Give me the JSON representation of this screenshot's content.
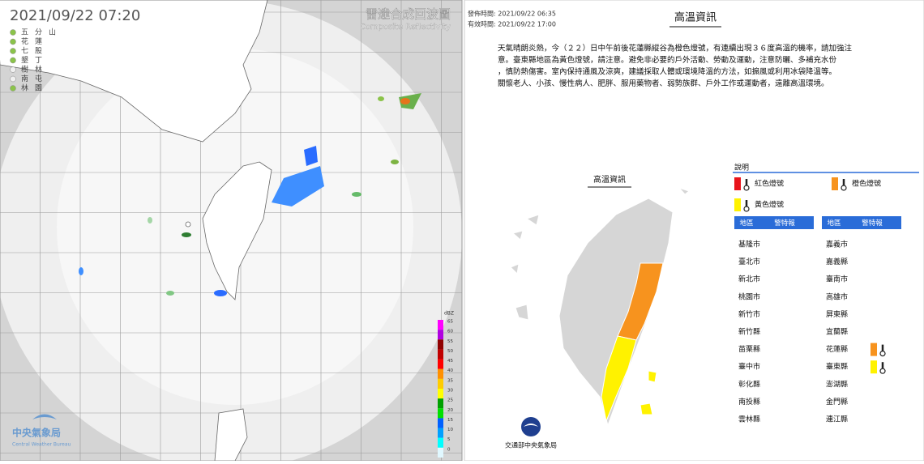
{
  "radar": {
    "timestamp": "2021/09/22  07:20",
    "title": "雷達合成回波圖",
    "subtitle": "Composite Reflectivity",
    "stations": [
      "五分山",
      "花蓮",
      "七股",
      "墾丁",
      "樹林",
      "南屯",
      "林園"
    ],
    "scale_unit": "dBZ",
    "scale": [
      {
        "value": 65,
        "color": "#ff00ff"
      },
      {
        "value": 60,
        "color": "#b000e0"
      },
      {
        "value": 55,
        "color": "#900000"
      },
      {
        "value": 50,
        "color": "#c00000"
      },
      {
        "value": 45,
        "color": "#ff0000"
      },
      {
        "value": 40,
        "color": "#ff9000"
      },
      {
        "value": 35,
        "color": "#ffcc00"
      },
      {
        "value": 30,
        "color": "#ffff00"
      },
      {
        "value": 25,
        "color": "#00a000"
      },
      {
        "value": 20,
        "color": "#00e000"
      },
      {
        "value": 15,
        "color": "#0060ff"
      },
      {
        "value": 10,
        "color": "#00a0ff"
      },
      {
        "value": 5,
        "color": "#00ffff"
      },
      {
        "value": 0,
        "color": "#e0f8ff"
      }
    ],
    "logo": "中央氣象局",
    "logo_en": "Central Weather Bureau"
  },
  "advisory": {
    "issued": "發佈時間: 2021/09/22 06:35",
    "valid": "有效時間: 2021/09/22 17:00",
    "title": "高溫資訊",
    "body": [
      "天氣晴朗炎熱，今（２２）日中午前後花蓮縣縱谷為橙色燈號，有連續出現３６度高溫的機率，請加強注",
      "意。臺東縣地區為黃色燈號，請注意。避免非必要的戶外活動、勞動及運動，注意防曬、多補充水份",
      "，慎防熱傷害。室內保持通風及涼爽，建議採取人體或環境降溫的方法，如搧風或利用冰袋降溫等。",
      "關懷老人、小孩、慢性病人、肥胖、服用藥物者、弱勢族群、戶外工作或運動者，遠離高溫環境。"
    ],
    "map_label": "高溫資訊",
    "legend_title": "說明",
    "levels": [
      {
        "key": "red",
        "label": "紅色燈號",
        "color": "#e8141b"
      },
      {
        "key": "orange",
        "label": "橙色燈號",
        "color": "#f7931e"
      },
      {
        "key": "yellow",
        "label": "黃色燈號",
        "color": "#fff200"
      }
    ],
    "table_headers": [
      "地區",
      "警特報"
    ],
    "columns": [
      [
        {
          "name": "基隆市"
        },
        {
          "name": "臺北市"
        },
        {
          "name": "新北市"
        },
        {
          "name": "桃園市"
        },
        {
          "name": "新竹市"
        },
        {
          "name": "新竹縣"
        },
        {
          "name": "苗栗縣"
        },
        {
          "name": "臺中市"
        },
        {
          "name": "彰化縣"
        },
        {
          "name": "南投縣"
        },
        {
          "name": "雲林縣"
        }
      ],
      [
        {
          "name": "嘉義市"
        },
        {
          "name": "嘉義縣"
        },
        {
          "name": "臺南市"
        },
        {
          "name": "高雄市"
        },
        {
          "name": "屏東縣"
        },
        {
          "name": "宜蘭縣"
        },
        {
          "name": "花蓮縣",
          "warning": "orange"
        },
        {
          "name": "臺東縣",
          "warning": "yellow"
        },
        {
          "name": "澎湖縣"
        },
        {
          "name": "金門縣"
        },
        {
          "name": "連江縣"
        }
      ]
    ],
    "footer": "交通部中央氣象局"
  }
}
